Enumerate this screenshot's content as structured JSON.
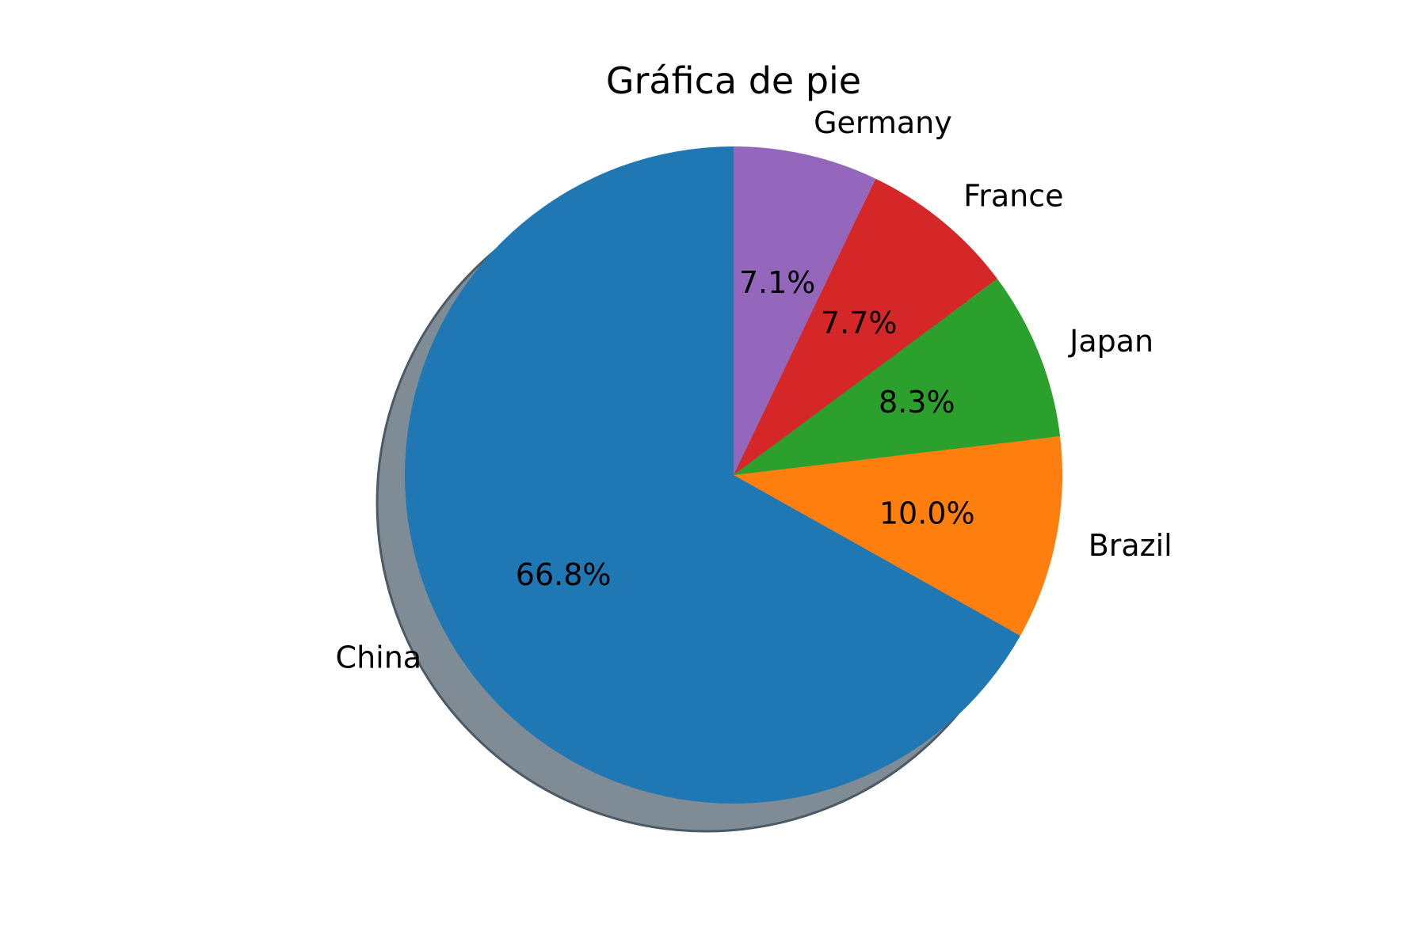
{
  "chart_data": {
    "type": "pie",
    "title": "Gráfica de pie",
    "start_angle_deg": 90,
    "direction": "counterclockwise",
    "shadow": true,
    "shadow_color": "#7f8c95",
    "shadow_edge_color": "#4a5a66",
    "slices": [
      {
        "label": "China",
        "percent_label": "66.8%",
        "value": 66.8,
        "color": "#1f77b4"
      },
      {
        "label": "Brazil",
        "percent_label": "10.0%",
        "value": 10.0,
        "color": "#ff7f0e"
      },
      {
        "label": "Japan",
        "percent_label": "8.3%",
        "value": 8.3,
        "color": "#2ca02c"
      },
      {
        "label": "France",
        "percent_label": "7.7%",
        "value": 7.7,
        "color": "#d62728"
      },
      {
        "label": "Germany",
        "percent_label": "7.1%",
        "value": 7.1,
        "color": "#9467bd"
      }
    ]
  }
}
